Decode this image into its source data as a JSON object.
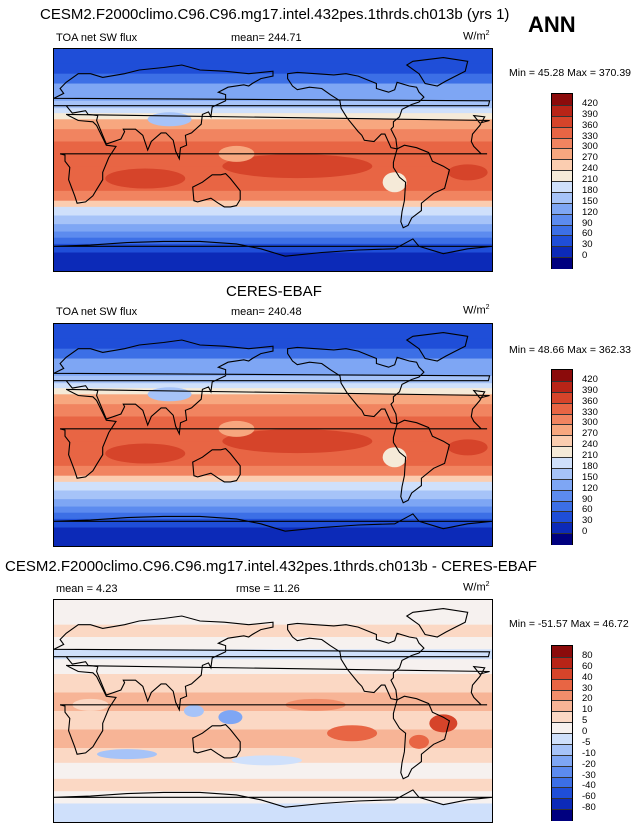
{
  "season": "ANN",
  "colors": {
    "abs": [
      "#00007f",
      "#0c2ab8",
      "#1f4ed8",
      "#3c6fe6",
      "#5c8bef",
      "#7ea6f4",
      "#a6c3f8",
      "#cfe0fb",
      "#f5ead8",
      "#fbcdb0",
      "#f7a77f",
      "#f18460",
      "#e86544",
      "#d6442a",
      "#b82417",
      "#8b0b0b"
    ],
    "diff": [
      "#00007f",
      "#0c2ab8",
      "#1f4ed8",
      "#3c6fe6",
      "#5c8bef",
      "#7ea6f4",
      "#a6c3f8",
      "#cfe0fb",
      "#f6f1ef",
      "#fbd8c4",
      "#f7b496",
      "#f18e6b",
      "#e86544",
      "#d6442a",
      "#b82417",
      "#8b0b0b"
    ]
  },
  "panels": [
    {
      "title": "CESM2.F2000climo.C96.C96.mg17.intel.432pes.1thrds.ch013b (yrs 1)",
      "variable": "TOA net SW flux",
      "stat_text": "mean= 244.71",
      "units": "W/m",
      "units_exp": "2",
      "minmax": "Min = 45.28 Max = 370.39",
      "levels": [
        "420",
        "390",
        "360",
        "330",
        "300",
        "270",
        "240",
        "210",
        "180",
        "150",
        "120",
        "90",
        "60",
        "30",
        "0"
      ],
      "palette": "abs",
      "kind": "model"
    },
    {
      "title": "CERES-EBAF",
      "variable": "TOA net SW flux",
      "stat_text": "mean= 240.48",
      "units": "W/m",
      "units_exp": "2",
      "minmax": "Min = 48.66 Max = 362.33",
      "levels": [
        "420",
        "390",
        "360",
        "330",
        "300",
        "270",
        "240",
        "210",
        "180",
        "150",
        "120",
        "90",
        "60",
        "30",
        "0"
      ],
      "palette": "abs",
      "kind": "obs"
    },
    {
      "title": "CESM2.F2000climo.C96.C96.mg17.intel.432pes.1thrds.ch013b - CERES-EBAF",
      "variable": "mean =  4.23",
      "stat_text": "rmse = 11.26",
      "units": "W/m",
      "units_exp": "2",
      "minmax": "Min = -51.57 Max =  46.72",
      "levels": [
        "80",
        "60",
        "40",
        "30",
        "20",
        "10",
        "5",
        "0",
        "-5",
        "-10",
        "-20",
        "-30",
        "-40",
        "-60",
        "-80"
      ],
      "palette": "diff",
      "kind": "diff"
    }
  ],
  "chart_data": [
    {
      "type": "heatmap",
      "title": "CESM2.F2000climo.C96.C96.mg17.intel.432pes.1thrds.ch013b (yrs 1)",
      "subtitle": "TOA net SW flux",
      "mean": 244.71,
      "min": 45.28,
      "max": 370.39,
      "levels": [
        0,
        30,
        60,
        90,
        120,
        150,
        180,
        210,
        240,
        270,
        300,
        330,
        360,
        390,
        420
      ]
    },
    {
      "type": "heatmap",
      "title": "CERES-EBAF",
      "subtitle": "TOA net SW flux",
      "mean": 240.48,
      "min": 48.66,
      "max": 362.33,
      "levels": [
        0,
        30,
        60,
        90,
        120,
        150,
        180,
        210,
        240,
        270,
        300,
        330,
        360,
        390,
        420
      ]
    },
    {
      "type": "heatmap",
      "title": "CESM2.F2000climo.C96.C96.mg17.intel.432pes.1thrds.ch013b - CERES-EBAF",
      "mean": 4.23,
      "rmse": 11.26,
      "min": -51.57,
      "max": 46.72,
      "levels": [
        -80,
        -60,
        -40,
        -30,
        -20,
        -10,
        -5,
        0,
        5,
        10,
        20,
        30,
        40,
        60,
        80
      ]
    }
  ]
}
